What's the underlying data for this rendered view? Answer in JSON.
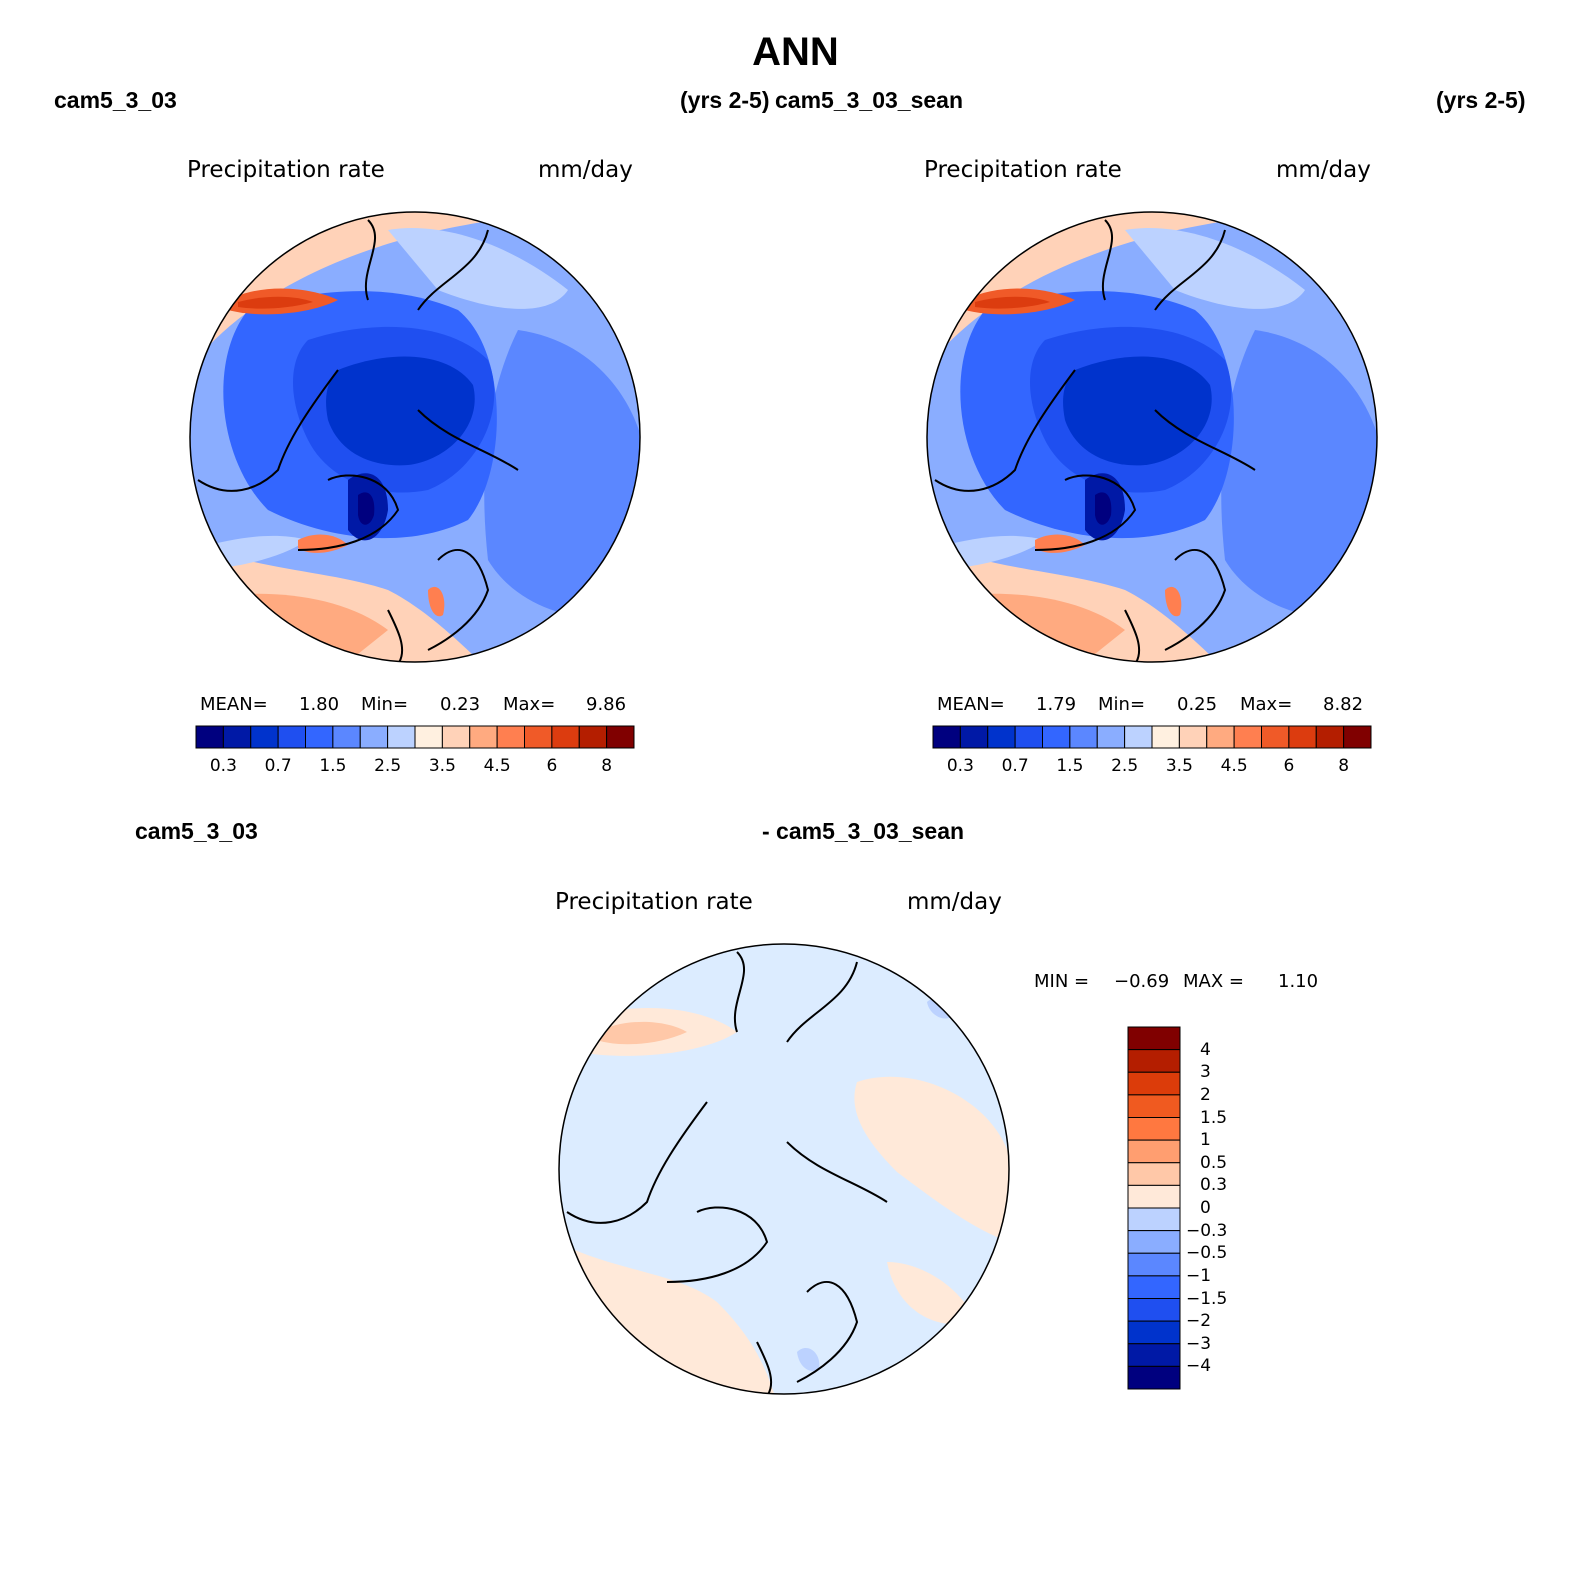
{
  "title": "ANN",
  "top_left": {
    "case": "cam5_3_03",
    "years": "(yrs 2-5)"
  },
  "top_right": {
    "case": "cam5_3_03_sean",
    "years": "(yrs 2-5)"
  },
  "diff": {
    "case_a": "cam5_3_03",
    "case_b": "- cam5_3_03_sean"
  },
  "variable": "Precipitation rate",
  "units": "mm/day",
  "stats_left": {
    "mean_label": "MEAN=",
    "mean": "1.80",
    "min_label": "Min=",
    "min": "0.23",
    "max_label": "Max=",
    "max": "9.86"
  },
  "stats_right": {
    "mean_label": "MEAN=",
    "mean": "1.79",
    "min_label": "Min=",
    "min": "0.25",
    "max_label": "Max=",
    "max": "8.82"
  },
  "stats_diff": {
    "min_label": "MIN =",
    "min": "−0.69",
    "max_label": "MAX =",
    "max": "1.10"
  },
  "colors": {
    "seq": [
      "#00007f",
      "#0019a6",
      "#0033cc",
      "#1f4ff0",
      "#3366ff",
      "#5b87ff",
      "#8aadff",
      "#bcd2ff",
      "#e0ecff",
      "#fff0e0",
      "#ffd2b8",
      "#ffaa80",
      "#ff7f50",
      "#f05a28",
      "#dc3c0f",
      "#b41e00",
      "#800000"
    ],
    "div": [
      "#00007f",
      "#0019a6",
      "#0033cc",
      "#1f4ff0",
      "#3366ff",
      "#5b87ff",
      "#8aadff",
      "#bcd2ff",
      "#dcecff",
      "#ffe9d9",
      "#ffc8a8",
      "#ff9e70",
      "#ff7840",
      "#f05a20",
      "#dc3c0a",
      "#b41e00",
      "#800000"
    ]
  },
  "chart_data": [
    {
      "type": "heatmap",
      "projection": "north polar stereographic",
      "title": "Precipitation rate",
      "units": "mm/day",
      "case": "cam5_3_03",
      "years": "(yrs 2-5)",
      "mean": 1.8,
      "min": 0.23,
      "max": 9.86,
      "colorbar_levels": [
        0.2,
        0.3,
        0.5,
        0.7,
        1,
        1.5,
        2,
        2.5,
        3,
        3.5,
        4,
        4.5,
        5,
        6,
        7,
        8
      ],
      "colorbar_tick_labels": [
        "0.3",
        "0.7",
        "1.5",
        "2.5",
        "3.5",
        "4.5",
        "6",
        "8"
      ]
    },
    {
      "type": "heatmap",
      "projection": "north polar stereographic",
      "title": "Precipitation rate",
      "units": "mm/day",
      "case": "cam5_3_03_sean",
      "years": "(yrs 2-5)",
      "mean": 1.79,
      "min": 0.25,
      "max": 8.82,
      "colorbar_levels": [
        0.2,
        0.3,
        0.5,
        0.7,
        1,
        1.5,
        2,
        2.5,
        3,
        3.5,
        4,
        4.5,
        5,
        6,
        7,
        8
      ],
      "colorbar_tick_labels": [
        "0.3",
        "0.7",
        "1.5",
        "2.5",
        "3.5",
        "4.5",
        "6",
        "8"
      ]
    },
    {
      "type": "heatmap",
      "projection": "north polar stereographic",
      "title": "Precipitation rate",
      "units": "mm/day",
      "case": "cam5_3_03 - cam5_3_03_sean",
      "min": -0.69,
      "max": 1.1,
      "colorbar_levels": [
        -4,
        -3,
        -2,
        -1.5,
        -1,
        -0.5,
        -0.3,
        0,
        0.3,
        0.5,
        1,
        1.5,
        2,
        3,
        4
      ],
      "colorbar_tick_labels": [
        "4",
        "3",
        "2",
        "1.5",
        "1",
        "0.5",
        "0.3",
        "0",
        "−0.3",
        "−0.5",
        "−1",
        "−1.5",
        "−2",
        "−3",
        "−4"
      ]
    }
  ]
}
